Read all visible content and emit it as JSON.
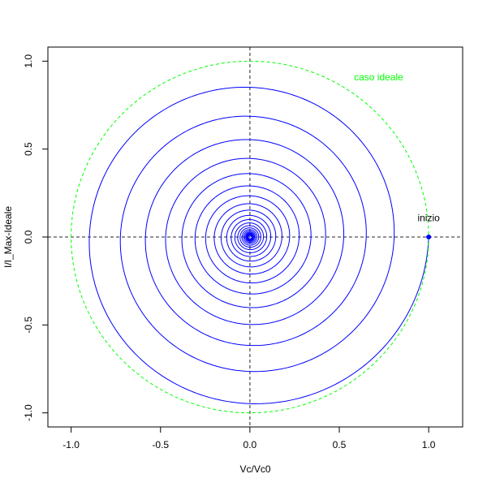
{
  "chart_data": {
    "type": "line",
    "xlabel": "Vc/Vc0",
    "ylabel": "I/I_Max-Ideale",
    "xlim": [
      -1.13,
      1.19
    ],
    "ylim": [
      -1.08,
      1.08
    ],
    "x_ticks": [
      "-1.0",
      "-0.5",
      "0.0",
      "0.5",
      "1.0"
    ],
    "y_ticks": [
      "-1.0",
      "-0.5",
      "0.0",
      "0.5",
      "1.0"
    ],
    "grid": false,
    "legend": "none",
    "series": [
      {
        "style": "solid",
        "color": "#0000ff",
        "shape": "spiral",
        "start": [
          1.0,
          0.0
        ],
        "end": [
          0.0,
          0.0
        ],
        "first_turn_crossings": {
          "x_at_y_neg": 0.0,
          "y_at_x0_bottom": -0.95,
          "x_left": -0.9,
          "y_top": 0.85,
          "x_right_second_pass": 0.81
        },
        "decay_per_quarter_turn": 0.9477
      },
      {
        "name": "caso ideale",
        "style": "dashed",
        "color": "#00ff00",
        "shape": "circle",
        "center": [
          0.0,
          0.0
        ],
        "radius": 1.0
      }
    ],
    "reference_lines": [
      {
        "orientation": "horizontal",
        "value": 0.0,
        "style": "dashed",
        "color": "#555555"
      },
      {
        "orientation": "vertical",
        "value": 0.0,
        "style": "dashed",
        "color": "#555555"
      }
    ],
    "points": [
      {
        "x": 1.0,
        "y": 0.0,
        "color": "#0000ff"
      }
    ],
    "annotations": [
      {
        "text": "caso ideale",
        "x": 0.72,
        "y": 0.89,
        "color": "#00ff00"
      },
      {
        "text": "inizio",
        "x": 1.0,
        "y": 0.09,
        "color": "#000000"
      }
    ]
  }
}
